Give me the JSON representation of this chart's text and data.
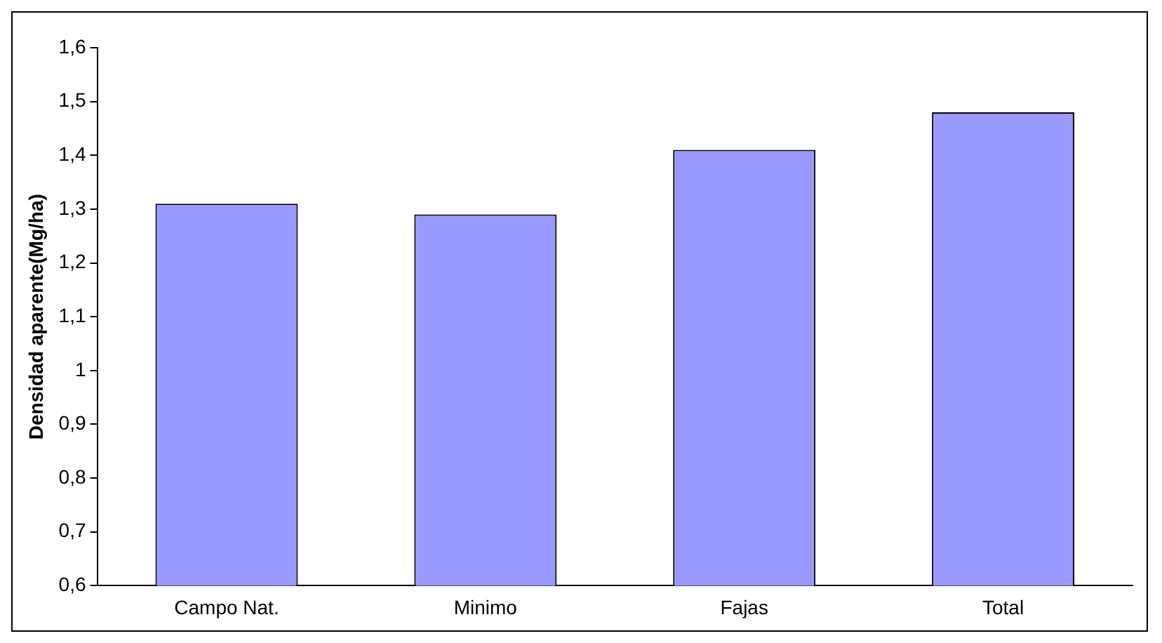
{
  "chart_data": {
    "type": "bar",
    "ylabel": "Densidad aparente(Mg/ha)",
    "categories": [
      "Campo Nat.",
      "Minimo",
      "Fajas",
      "Total"
    ],
    "values": [
      1.31,
      1.29,
      1.41,
      1.48
    ],
    "color": "#9999ff",
    "ylim": [
      0.6,
      1.6
    ],
    "yticks": [
      {
        "value": 0.6,
        "label": "0,6"
      },
      {
        "value": 0.7,
        "label": "0,7"
      },
      {
        "value": 0.8,
        "label": "0,8"
      },
      {
        "value": 0.9,
        "label": "0,9"
      },
      1,
      {
        "value": 1.1,
        "label": "1,1"
      },
      {
        "value": 1.2,
        "label": "1,2"
      },
      {
        "value": 1.3,
        "label": "1,3"
      },
      {
        "value": 1.4,
        "label": "1,4"
      },
      {
        "value": 1.5,
        "label": "1,5"
      },
      {
        "value": 1.6,
        "label": "1,6"
      }
    ],
    "grid": false,
    "legend": false
  }
}
